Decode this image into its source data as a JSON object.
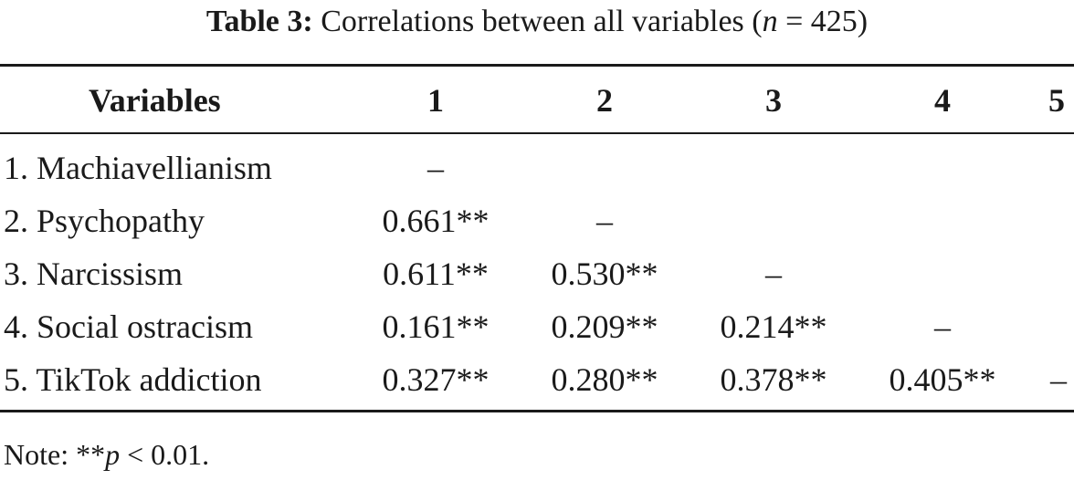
{
  "caption": {
    "label": "Table 3:",
    "text_before": "Correlations between all variables (",
    "n_symbol": "n",
    "text_after": " = 425)"
  },
  "header": {
    "stub": "Variables",
    "columns": [
      "1",
      "2",
      "3",
      "4",
      "5"
    ]
  },
  "rows": [
    {
      "name": "1. Machiavellianism",
      "cells": [
        "–",
        "",
        "",
        "",
        ""
      ]
    },
    {
      "name": "2. Psychopathy",
      "cells": [
        "0.661**",
        "–",
        "",
        "",
        ""
      ]
    },
    {
      "name": "3. Narcissism",
      "cells": [
        "0.611**",
        "0.530**",
        "–",
        "",
        ""
      ]
    },
    {
      "name": "4. Social ostracism",
      "cells": [
        "0.161**",
        "0.209**",
        "0.214**",
        "–",
        ""
      ]
    },
    {
      "name": "5. TikTok addiction",
      "cells": [
        "0.327**",
        "0.280**",
        "0.378**",
        "0.405**",
        "–"
      ]
    }
  ],
  "note": {
    "prefix": "Note: **",
    "p_symbol": "p",
    "suffix": " < 0.01."
  }
}
